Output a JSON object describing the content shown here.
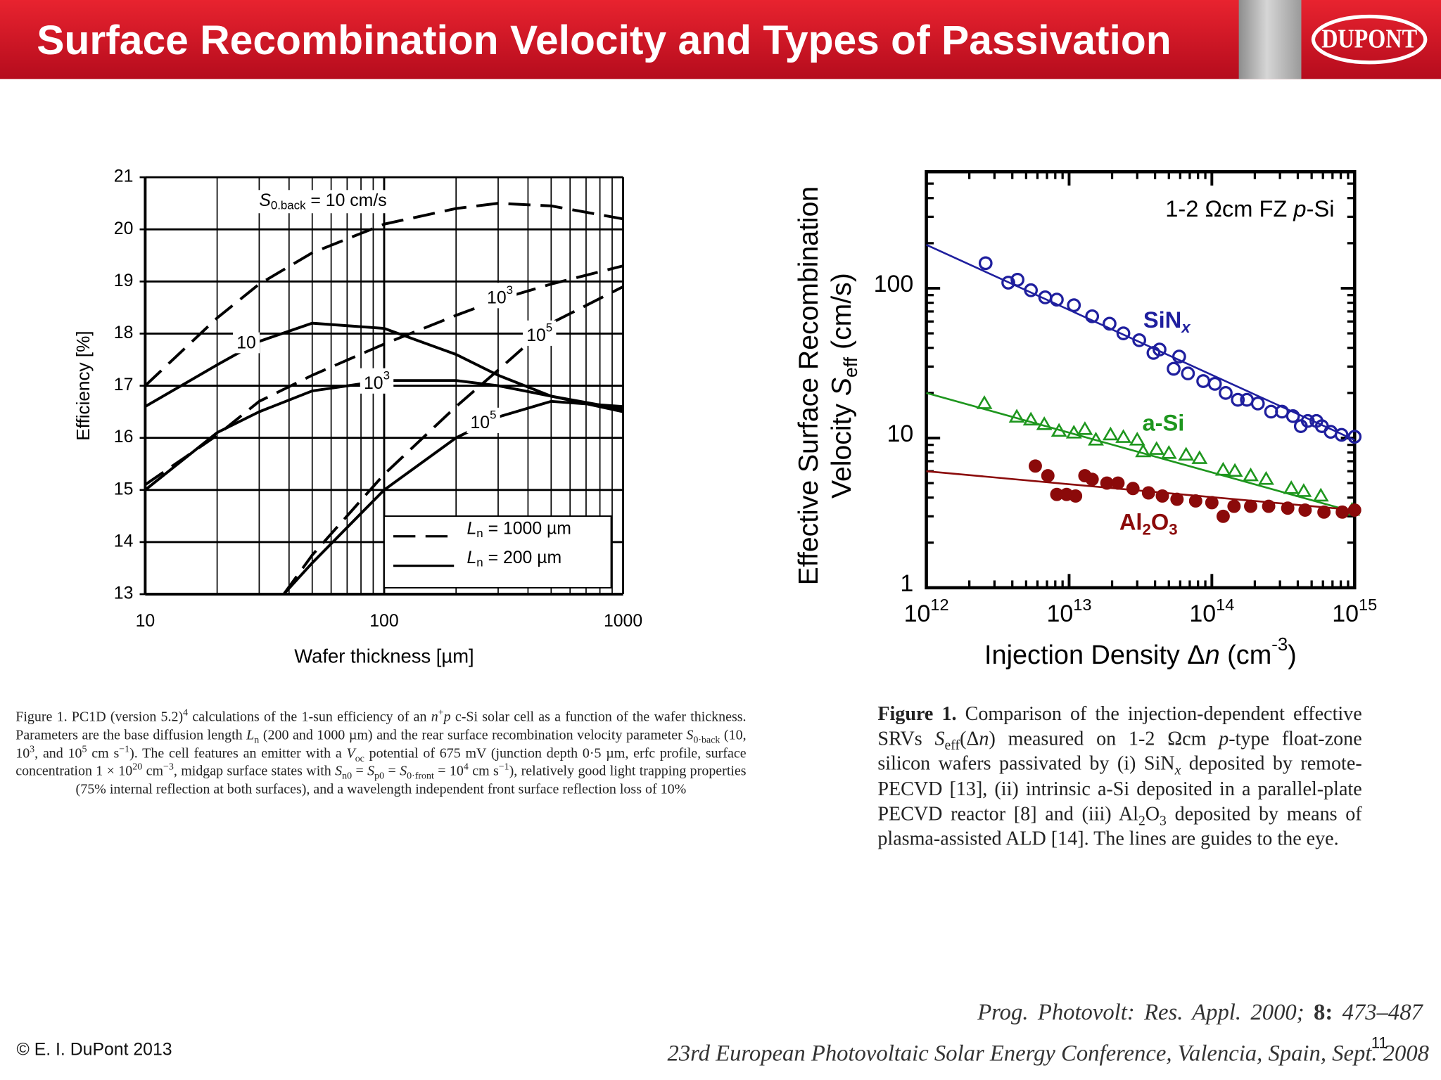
{
  "header": {
    "title": "Surface Recombination Velocity and Types of Passivation",
    "logo": "DUPONT"
  },
  "chart_data": [
    {
      "type": "line",
      "xlog": true,
      "grid": true,
      "xlim": [
        10,
        1000
      ],
      "ylim": [
        13,
        21
      ],
      "xticks": [
        10,
        100,
        1000
      ],
      "yticks": [
        13,
        14,
        15,
        16,
        17,
        18,
        19,
        20,
        21
      ],
      "xlabel": "Wafer thickness [µm]",
      "ylabel": "Efficiency [%]",
      "annotations": [
        [
          {
            "t": "S",
            "s": "i"
          },
          {
            "t": "0.back",
            "s": "sub"
          },
          {
            "t": " = 10 cm/s"
          }
        ],
        [
          {
            "t": "10"
          }
        ],
        [
          {
            "t": "10"
          },
          {
            "t": "3",
            "s": "sup"
          }
        ],
        [
          {
            "t": "10"
          },
          {
            "t": "3",
            "s": "sup"
          }
        ],
        [
          {
            "t": "10"
          },
          {
            "t": "5",
            "s": "sup"
          }
        ],
        [
          {
            "t": "10"
          },
          {
            "t": "5",
            "s": "sup"
          }
        ]
      ],
      "legend": [
        {
          "style": "dashed",
          "label": [
            {
              "t": "L",
              "s": "i"
            },
            {
              "t": "n",
              "s": "sub"
            },
            {
              "t": " = 1000 µm"
            }
          ]
        },
        {
          "style": "solid",
          "label": [
            {
              "t": "L",
              "s": "i"
            },
            {
              "t": "n",
              "s": "sub"
            },
            {
              "t": " =  200 µm"
            }
          ]
        }
      ],
      "series": [
        {
          "style": "dashed",
          "color": "#000000",
          "x": [
            10,
            20,
            30,
            50,
            100,
            200,
            300,
            500,
            1000
          ],
          "values": [
            17.0,
            18.3,
            18.95,
            19.55,
            20.1,
            20.4,
            20.5,
            20.45,
            20.2
          ]
        },
        {
          "style": "solid",
          "color": "#000000",
          "x": [
            10,
            20,
            30,
            50,
            100,
            200,
            300,
            500,
            1000
          ],
          "values": [
            16.6,
            17.4,
            17.85,
            18.2,
            18.1,
            17.6,
            17.2,
            16.8,
            16.5
          ]
        },
        {
          "style": "dashed",
          "color": "#000000",
          "x": [
            10,
            20,
            30,
            50,
            100,
            200,
            300,
            500,
            1000
          ],
          "values": [
            15.1,
            16.05,
            16.7,
            17.2,
            17.8,
            18.35,
            18.65,
            18.95,
            19.3
          ]
        },
        {
          "style": "solid",
          "color": "#000000",
          "x": [
            10,
            20,
            30,
            50,
            100,
            200,
            300,
            500,
            1000
          ],
          "values": [
            15.0,
            16.1,
            16.5,
            16.9,
            17.1,
            17.1,
            17.0,
            16.8,
            16.55
          ]
        },
        {
          "style": "dashed",
          "color": "#000000",
          "x": [
            38,
            50,
            100,
            200,
            300,
            500,
            1000
          ],
          "values": [
            13.0,
            13.75,
            15.3,
            16.6,
            17.3,
            18.2,
            18.9
          ]
        },
        {
          "style": "solid",
          "color": "#000000",
          "x": [
            38,
            50,
            100,
            200,
            300,
            500,
            1000
          ],
          "values": [
            13.0,
            13.6,
            15.0,
            16.0,
            16.4,
            16.7,
            16.6
          ]
        }
      ]
    },
    {
      "type": "scatter",
      "xlog": true,
      "ylog": true,
      "xlim": [
        1000000000000.0,
        1000000000000000.0
      ],
      "ylim": [
        1,
        600
      ],
      "xticks": [
        {
          "value": 1000000000000.0,
          "label": "10",
          "sup": "12"
        },
        {
          "value": 10000000000000.0,
          "label": "10",
          "sup": "13"
        },
        {
          "value": 100000000000000.0,
          "label": "10",
          "sup": "14"
        },
        {
          "value": 1000000000000000.0,
          "label": "10",
          "sup": "15"
        }
      ],
      "yticks": [
        1,
        10,
        100
      ],
      "xlabel": [
        {
          "t": "Injection Density Δ"
        },
        {
          "t": "n",
          "s": "i"
        },
        {
          "t": " (cm"
        },
        {
          "t": "-3",
          "s": "sup"
        },
        {
          "t": ")"
        }
      ],
      "ylabel": [
        [
          {
            "t": "Effective Surface Recombination"
          }
        ],
        [
          {
            "t": "Velocity "
          },
          {
            "t": "S",
            "s": "i"
          },
          {
            "t": "eff",
            "s": "sub"
          },
          {
            "t": " (cm/s)"
          }
        ]
      ],
      "annotation": [
        {
          "t": "1-2 Ωcm FZ "
        },
        {
          "t": "p",
          "s": "i"
        },
        {
          "t": "-Si"
        }
      ],
      "series": [
        {
          "label": [
            {
              "t": "SiN"
            },
            {
              "t": "x",
              "s": "isub"
            }
          ],
          "color": "#1f1f9e",
          "marker": "circle-open",
          "x": [
            2600000000000.0,
            3750000000000.0,
            4350000000000.0,
            5400000000000.0,
            6800000000000.0,
            8200000000000.0,
            10800000000000.0,
            14500000000000.0,
            19200000000000.0,
            24000000000000.0,
            31000000000000.0,
            39000000000000.0,
            43000000000000.0,
            59000000000000.0,
            54000000000000.0,
            68000000000000.0,
            87000000000000.0,
            105000000000000.0,
            125000000000000.0,
            152000000000000.0,
            176000000000000.0,
            210000000000000.0,
            260000000000000.0,
            310000000000000.0,
            370000000000000.0,
            420000000000000.0,
            470000000000000.0,
            540000000000000.0,
            590000000000000.0,
            680000000000000.0,
            810000000000000.0,
            1000000000000000.0
          ],
          "values": [
            147,
            109,
            114,
            97,
            87,
            84,
            77,
            65,
            58,
            50,
            45,
            37,
            39,
            35,
            29,
            27,
            24,
            23,
            20,
            18,
            18,
            17,
            15,
            15,
            14,
            12,
            13,
            13,
            12,
            11,
            10.5,
            10.2
          ],
          "fit": {
            "x": [
              1000000000000.0,
              1000000000000000.0
            ],
            "values": [
              195,
              9.7
            ]
          }
        },
        {
          "label": [
            {
              "t": "a-Si"
            }
          ],
          "color": "#1e961e",
          "marker": "triangle-open",
          "x": [
            2550000000000.0,
            4300000000000.0,
            5400000000000.0,
            6700000000000.0,
            8500000000000.0,
            10800000000000.0,
            12900000000000.0,
            15400000000000.0,
            19500000000000.0,
            24000000000000.0,
            30000000000000.0,
            33000000000000.0,
            41000000000000.0,
            50000000000000.0,
            66000000000000.0,
            82000000000000.0,
            120000000000000.0,
            145000000000000.0,
            187000000000000.0,
            240000000000000.0,
            360000000000000.0,
            440000000000000.0,
            580000000000000.0,
            960000000000000.0
          ],
          "values": [
            17,
            13.8,
            13.2,
            12.3,
            11.1,
            10.8,
            11.4,
            9.7,
            10.5,
            10.1,
            9.7,
            8.1,
            8.4,
            7.9,
            7.7,
            7.3,
            6.1,
            6.0,
            5.6,
            5.3,
            4.6,
            4.4,
            4.1,
            3.3
          ],
          "fit": {
            "x": [
              1000000000000.0,
              1000000000000000.0
            ],
            "values": [
              20,
              3.2
            ]
          }
        },
        {
          "label": [
            {
              "t": "Al"
            },
            {
              "t": "2",
              "s": "sub"
            },
            {
              "t": "O"
            },
            {
              "t": "3",
              "s": "sub"
            }
          ],
          "color": "#8b0a0a",
          "marker": "circle",
          "x": [
            5800000000000.0,
            7100000000000.0,
            8200000000000.0,
            9600000000000.0,
            11100000000000.0,
            12900000000000.0,
            14500000000000.0,
            18400000000000.0,
            22000000000000.0,
            28000000000000.0,
            36000000000000.0,
            45000000000000.0,
            57000000000000.0,
            77000000000000.0,
            100000000000000.0,
            120000000000000.0,
            143000000000000.0,
            187000000000000.0,
            250000000000000.0,
            340000000000000.0,
            450000000000000.0,
            610000000000000.0,
            820000000000000.0,
            1000000000000000.0
          ],
          "values": [
            6.5,
            5.6,
            4.2,
            4.2,
            4.1,
            5.6,
            5.3,
            5.0,
            5.0,
            4.6,
            4.3,
            4.1,
            3.9,
            3.8,
            3.7,
            3.0,
            3.5,
            3.5,
            3.5,
            3.4,
            3.3,
            3.2,
            3.2,
            3.3
          ],
          "fit": {
            "x": [
              1000000000000.0,
              1000000000000000.0
            ],
            "values": [
              6.0,
              3.3
            ]
          }
        }
      ]
    }
  ],
  "captions": {
    "left": [
      {
        "t": "Figure 1. PC1D (version 5.2)"
      },
      {
        "t": "4",
        "s": "sup"
      },
      {
        "t": " calculations of the 1-sun efficiency of an "
      },
      {
        "t": "n",
        "s": "i"
      },
      {
        "t": "+",
        "s": "sup"
      },
      {
        "t": "p",
        "s": "i"
      },
      {
        "t": " c-Si solar cell as a function of the wafer thickness. Parameters are the base diffusion length "
      },
      {
        "t": "L",
        "s": "i"
      },
      {
        "t": "n",
        "s": "sub"
      },
      {
        "t": " (200 and 1000 µm) and the rear surface recombination velocity parameter "
      },
      {
        "t": "S",
        "s": "i"
      },
      {
        "t": "0·back",
        "s": "sub"
      },
      {
        "t": " (10, 10"
      },
      {
        "t": "3",
        "s": "sup"
      },
      {
        "t": ", and 10"
      },
      {
        "t": "5",
        "s": "sup"
      },
      {
        "t": " cm s"
      },
      {
        "t": "−1",
        "s": "sup"
      },
      {
        "t": "). The cell features an emitter with a "
      },
      {
        "t": "V",
        "s": "i"
      },
      {
        "t": "oc",
        "s": "sub"
      },
      {
        "t": " potential of 675 mV (junction depth 0·5 µm, erfc profile, surface concentration 1 × 10"
      },
      {
        "t": "20",
        "s": "sup"
      },
      {
        "t": " cm"
      },
      {
        "t": "−3",
        "s": "sup"
      },
      {
        "t": ", midgap surface states with "
      },
      {
        "t": "S",
        "s": "i"
      },
      {
        "t": "n0",
        "s": "sub"
      },
      {
        "t": " = "
      },
      {
        "t": "S",
        "s": "i"
      },
      {
        "t": "p0",
        "s": "sub"
      },
      {
        "t": " = "
      },
      {
        "t": "S",
        "s": "i"
      },
      {
        "t": "0·front",
        "s": "sub"
      },
      {
        "t": " = 10"
      },
      {
        "t": "4",
        "s": "sup"
      },
      {
        "t": " cm s"
      },
      {
        "t": "−1",
        "s": "sup"
      },
      {
        "t": "), relatively good light trapping properties (75% internal reflection at both surfaces), and a wavelength independent front surface reflection loss of 10%"
      }
    ],
    "right": [
      {
        "t": "Figure 1.",
        "s": "b"
      },
      {
        "t": " Comparison of the injection-dependent effective SRVs "
      },
      {
        "t": "S",
        "s": "i"
      },
      {
        "t": "eff",
        "s": "sub"
      },
      {
        "t": "(Δ"
      },
      {
        "t": "n",
        "s": "i"
      },
      {
        "t": ") measured on 1-2 Ωcm "
      },
      {
        "t": "p",
        "s": "i"
      },
      {
        "t": "-type float-zone silicon wafers passivated by (i) SiN"
      },
      {
        "t": "x",
        "s": "isub"
      },
      {
        "t": " deposited by remote-PECVD [13], (ii) intrinsic a-Si deposited in a parallel-plate PECVD reactor [8] and (iii) Al"
      },
      {
        "t": "2",
        "s": "sub"
      },
      {
        "t": "O"
      },
      {
        "t": "3",
        "s": "sub"
      },
      {
        "t": " deposited by means of plasma-assisted ALD [14]. The lines are guides to the eye."
      }
    ]
  },
  "footer": {
    "copyright": "© E. I. DuPont 2013",
    "reference1": [
      {
        "t": "Prog. Photovolt: Res. Appl. 2000; "
      },
      {
        "t": "8:",
        "s": "b"
      },
      {
        "t": " 473–487"
      }
    ],
    "reference2": "23rd European Photovoltaic Solar Energy Conference, Valencia, Spain, Sept. 2008",
    "page": "11"
  }
}
